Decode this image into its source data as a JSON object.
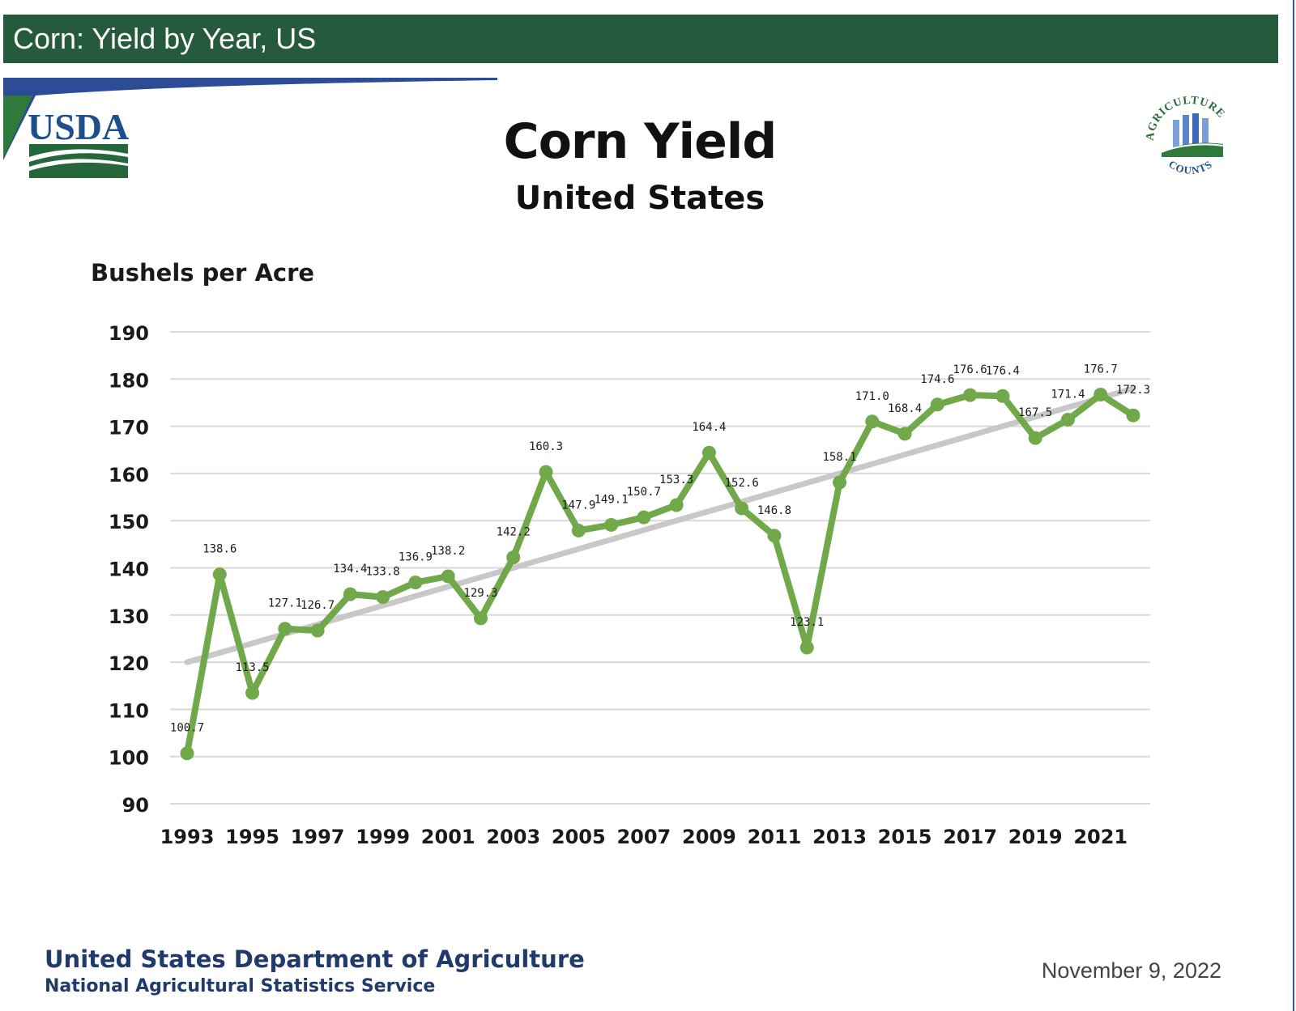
{
  "header": {
    "title": "Corn: Yield by Year, US"
  },
  "logos": {
    "left_text": "USDA",
    "right_top_text": "AGRICULTURE",
    "right_bottom_text": "COUNTS"
  },
  "colors": {
    "header_bg": "#255a3c",
    "series": "#70a84a",
    "trend": "#c8c8c8",
    "footer_text": "#1f3a6b"
  },
  "chart_data": {
    "type": "line",
    "title": "Corn Yield",
    "subtitle": "United States",
    "ylabel": "Bushels per Acre",
    "xlabel": "",
    "ylim": [
      90,
      190
    ],
    "yticks": [
      90,
      100,
      110,
      120,
      130,
      140,
      150,
      160,
      170,
      180,
      190
    ],
    "xtick_labels": [
      "1993",
      "1995",
      "1997",
      "1999",
      "2001",
      "2003",
      "2005",
      "2007",
      "2009",
      "2011",
      "2013",
      "2015",
      "2017",
      "2019",
      "2021"
    ],
    "grid": true,
    "series": [
      {
        "name": "Corn Yield",
        "x": [
          1993,
          1994,
          1995,
          1996,
          1997,
          1998,
          1999,
          2000,
          2001,
          2002,
          2003,
          2004,
          2005,
          2006,
          2007,
          2008,
          2009,
          2010,
          2011,
          2012,
          2013,
          2014,
          2015,
          2016,
          2017,
          2018,
          2019,
          2020,
          2021,
          2022
        ],
        "values": [
          100.7,
          138.6,
          113.5,
          127.1,
          126.7,
          134.4,
          133.8,
          136.9,
          138.2,
          129.3,
          142.2,
          160.3,
          147.9,
          149.1,
          150.7,
          153.3,
          164.4,
          152.6,
          146.8,
          123.1,
          158.1,
          171.0,
          168.4,
          174.6,
          176.6,
          176.4,
          167.5,
          171.4,
          176.7,
          172.3
        ],
        "labels": [
          "100.7",
          "138.6",
          "113.5",
          "127.1",
          "126.7",
          "134.4",
          "133.8",
          "136.9",
          "138.2",
          "129.3",
          "142.2",
          "160.3",
          "147.9",
          "149.1",
          "150.7",
          "153.3",
          "164.4",
          "152.6",
          "146.8",
          "123.1",
          "158.1",
          "171.0",
          "168.4",
          "174.6",
          "176.6",
          "176.4",
          "167.5",
          "171.4",
          "176.7",
          "172.3"
        ]
      }
    ],
    "trend": {
      "name": "Trend",
      "x": [
        1993,
        2022
      ],
      "values": [
        120,
        178
      ]
    }
  },
  "footer": {
    "department": "United States Department of Agriculture",
    "agency": "National Agricultural Statistics Service",
    "date": "November 9, 2022"
  }
}
